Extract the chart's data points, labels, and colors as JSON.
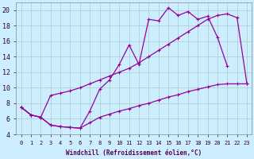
{
  "xlabel": "Windchill (Refroidissement éolien,°C)",
  "bg_color": "#cceeff",
  "grid_color": "#aacccc",
  "line_color": "#990099",
  "xlim": [
    -0.5,
    23.5
  ],
  "ylim": [
    4,
    21
  ],
  "xticks": [
    0,
    1,
    2,
    3,
    4,
    5,
    6,
    7,
    8,
    9,
    10,
    11,
    12,
    13,
    14,
    15,
    16,
    17,
    18,
    19,
    20,
    21,
    22,
    23
  ],
  "yticks": [
    4,
    6,
    8,
    10,
    12,
    14,
    16,
    18,
    20
  ],
  "curve1_x": [
    0,
    1,
    2,
    3,
    4,
    5,
    6,
    7,
    8,
    9,
    10,
    11,
    12,
    13,
    14,
    15,
    16,
    17,
    18,
    19,
    20,
    21
  ],
  "curve1_y": [
    7.5,
    6.5,
    6.2,
    5.2,
    5.0,
    4.9,
    4.8,
    7.0,
    9.8,
    11.0,
    13.0,
    15.5,
    13.0,
    18.8,
    18.6,
    20.3,
    19.3,
    19.8,
    18.8,
    19.2,
    16.5,
    12.8
  ],
  "curve2_x": [
    0,
    1,
    2,
    3,
    4,
    5,
    6,
    7,
    8,
    9,
    10,
    11,
    12,
    13,
    14,
    15,
    16,
    17,
    18,
    19,
    20,
    21,
    22,
    23
  ],
  "curve2_y": [
    7.5,
    6.5,
    6.2,
    9.0,
    9.3,
    9.6,
    10.0,
    10.5,
    11.0,
    11.5,
    12.0,
    12.5,
    13.2,
    14.0,
    14.8,
    15.6,
    16.4,
    17.2,
    18.0,
    18.8,
    19.3,
    19.5,
    19.0,
    10.5
  ],
  "curve3_x": [
    0,
    1,
    2,
    3,
    4,
    5,
    6,
    7,
    8,
    9,
    10,
    11,
    12,
    13,
    14,
    15,
    16,
    17,
    18,
    19,
    20,
    21,
    22,
    23
  ],
  "curve3_y": [
    7.5,
    6.5,
    6.2,
    5.2,
    5.0,
    4.9,
    4.8,
    5.5,
    6.2,
    6.6,
    7.0,
    7.3,
    7.7,
    8.0,
    8.4,
    8.8,
    9.1,
    9.5,
    9.8,
    10.1,
    10.4,
    10.5,
    10.5,
    10.5
  ]
}
